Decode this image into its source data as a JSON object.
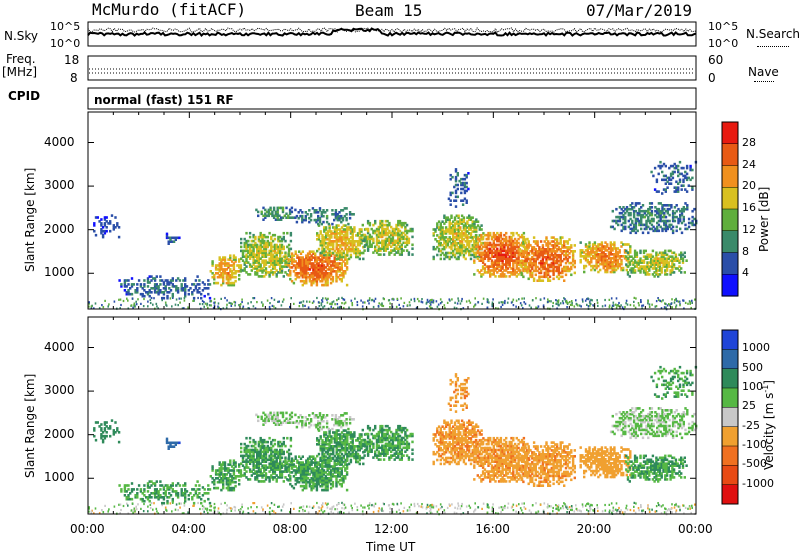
{
  "header": {
    "station": "McMurdo (fitACF)",
    "beam": "Beam 15",
    "date": "07/Mar/2019"
  },
  "strip_left": {
    "nsky": "N.Sky",
    "nsky_top": "10^5",
    "nsky_bottom": "10^0",
    "freq_label_1": "Freq.",
    "freq_label_2": "[MHz]",
    "freq_top": "18",
    "freq_bottom": "8",
    "cpid": "CPID"
  },
  "strip_right": {
    "nsearch": "N.Search",
    "nsearch_top": "10^5",
    "nsearch_bottom": "10^0",
    "nave": "Nave",
    "nave_top": "60",
    "nave_bottom": "0"
  },
  "cpid_text": "normal (fast) 151 RF",
  "colors": {
    "power": [
      "#1010ff",
      "#2a4ea8",
      "#3a8a6a",
      "#5fae3c",
      "#d8c020",
      "#f0901e",
      "#e85a14",
      "#e81a10"
    ],
    "velocity": [
      "#2045d8",
      "#2e6aa8",
      "#2f8a5a",
      "#56b844",
      "#c8c8c8",
      "#f0a030",
      "#f07020",
      "#e84a14",
      "#e01010"
    ]
  },
  "chart_data": {
    "type": "heatmap",
    "xlabel": "Time UT",
    "x_ticks": [
      "00:00",
      "04:00",
      "08:00",
      "12:00",
      "16:00",
      "20:00",
      "00:00"
    ],
    "x_tick_hours": [
      0,
      4,
      8,
      12,
      16,
      20,
      24
    ],
    "xlim_hours": [
      0,
      24
    ],
    "ylim_km": [
      180,
      4700
    ],
    "y_ticks": [
      1000,
      2000,
      3000,
      4000
    ],
    "panels": [
      {
        "name": "power",
        "ylabel": "Slant Range [km]",
        "colorbar_label": "Power [dB]",
        "colorbar_ticks": [
          "4",
          "8",
          "12",
          "16",
          "20",
          "24",
          "28"
        ]
      },
      {
        "name": "velocity",
        "ylabel": "Slant Range [km]",
        "colorbar_label": "Velocity [m s",
        "colorbar_label_sup": "-1",
        "colorbar_label_end": "]",
        "colorbar_ticks": [
          "1000",
          "500",
          "100",
          "25",
          "-25",
          "-100",
          "-500",
          "-1000"
        ]
      }
    ],
    "echo_regions": [
      {
        "t": [
          0.2,
          1.2
        ],
        "r": [
          1800,
          2300
        ],
        "p": 5,
        "v": 100,
        "d": 0.35
      },
      {
        "t": [
          3.0,
          3.6
        ],
        "r": [
          1650,
          1950
        ],
        "p": 6,
        "v": 600,
        "d": 0.5
      },
      {
        "t": [
          1.2,
          4.8
        ],
        "r": [
          400,
          900
        ],
        "p": 8,
        "v": 60,
        "d": 0.45
      },
      {
        "t": [
          4.8,
          6.0
        ],
        "r": [
          700,
          1400
        ],
        "p": 22,
        "v": 60,
        "d": 0.8
      },
      {
        "t": [
          6.0,
          8.0
        ],
        "r": [
          900,
          1900
        ],
        "p": 18,
        "v": 60,
        "d": 0.85
      },
      {
        "t": [
          6.6,
          8.2
        ],
        "r": [
          2200,
          2500
        ],
        "p": 12,
        "v": 10,
        "d": 0.6
      },
      {
        "t": [
          7.8,
          10.2
        ],
        "r": [
          700,
          1500
        ],
        "p": 26,
        "v": 60,
        "d": 0.9
      },
      {
        "t": [
          9.0,
          11.0
        ],
        "r": [
          1300,
          2100
        ],
        "p": 20,
        "v": 60,
        "d": 0.85
      },
      {
        "t": [
          8.2,
          10.5
        ],
        "r": [
          2100,
          2500
        ],
        "p": 10,
        "v": 10,
        "d": 0.45
      },
      {
        "t": [
          10.8,
          12.8
        ],
        "r": [
          1400,
          2200
        ],
        "p": 18,
        "v": 60,
        "d": 0.85
      },
      {
        "t": [
          13.6,
          15.6
        ],
        "r": [
          1300,
          2300
        ],
        "p": 18,
        "v": -250,
        "d": 0.85
      },
      {
        "t": [
          14.2,
          15.0
        ],
        "r": [
          2500,
          3400
        ],
        "p": 8,
        "v": -250,
        "d": 0.35
      },
      {
        "t": [
          15.2,
          17.4
        ],
        "r": [
          900,
          1900
        ],
        "p": 27,
        "v": -250,
        "d": 0.9
      },
      {
        "t": [
          17.0,
          19.2
        ],
        "r": [
          800,
          1800
        ],
        "p": 26,
        "v": -250,
        "d": 0.85
      },
      {
        "t": [
          19.4,
          21.4
        ],
        "r": [
          1000,
          1700
        ],
        "p": 24,
        "v": -100,
        "d": 0.85
      },
      {
        "t": [
          21.2,
          23.6
        ],
        "r": [
          900,
          1500
        ],
        "p": 18,
        "v": 60,
        "d": 0.75
      },
      {
        "t": [
          20.6,
          24.0
        ],
        "r": [
          1900,
          2600
        ],
        "p": 10,
        "v": 10,
        "d": 0.6
      },
      {
        "t": [
          22.2,
          24.0
        ],
        "r": [
          2800,
          3600
        ],
        "p": 8,
        "v": 60,
        "d": 0.35
      }
    ]
  }
}
